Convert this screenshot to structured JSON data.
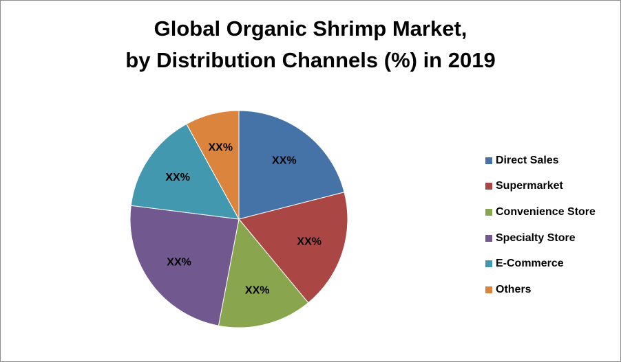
{
  "chart_data": {
    "type": "pie",
    "title_lines": [
      "Global Organic Shrimp Market,",
      "by Distribution Channels (%) in 2019"
    ],
    "categories": [
      "Direct Sales",
      "Supermarket",
      "Convenience Store",
      "Specialty Store",
      "E-Commerce",
      "Others"
    ],
    "values": [
      21,
      18,
      14,
      24,
      15,
      8
    ],
    "data_labels": [
      "XX%",
      "XX%",
      "XX%",
      "XX%",
      "XX%",
      "XX%"
    ],
    "colors": [
      "#4572a7",
      "#aa4643",
      "#89a54e",
      "#71588f",
      "#4198af",
      "#db843d"
    ],
    "legend_position": "right"
  }
}
